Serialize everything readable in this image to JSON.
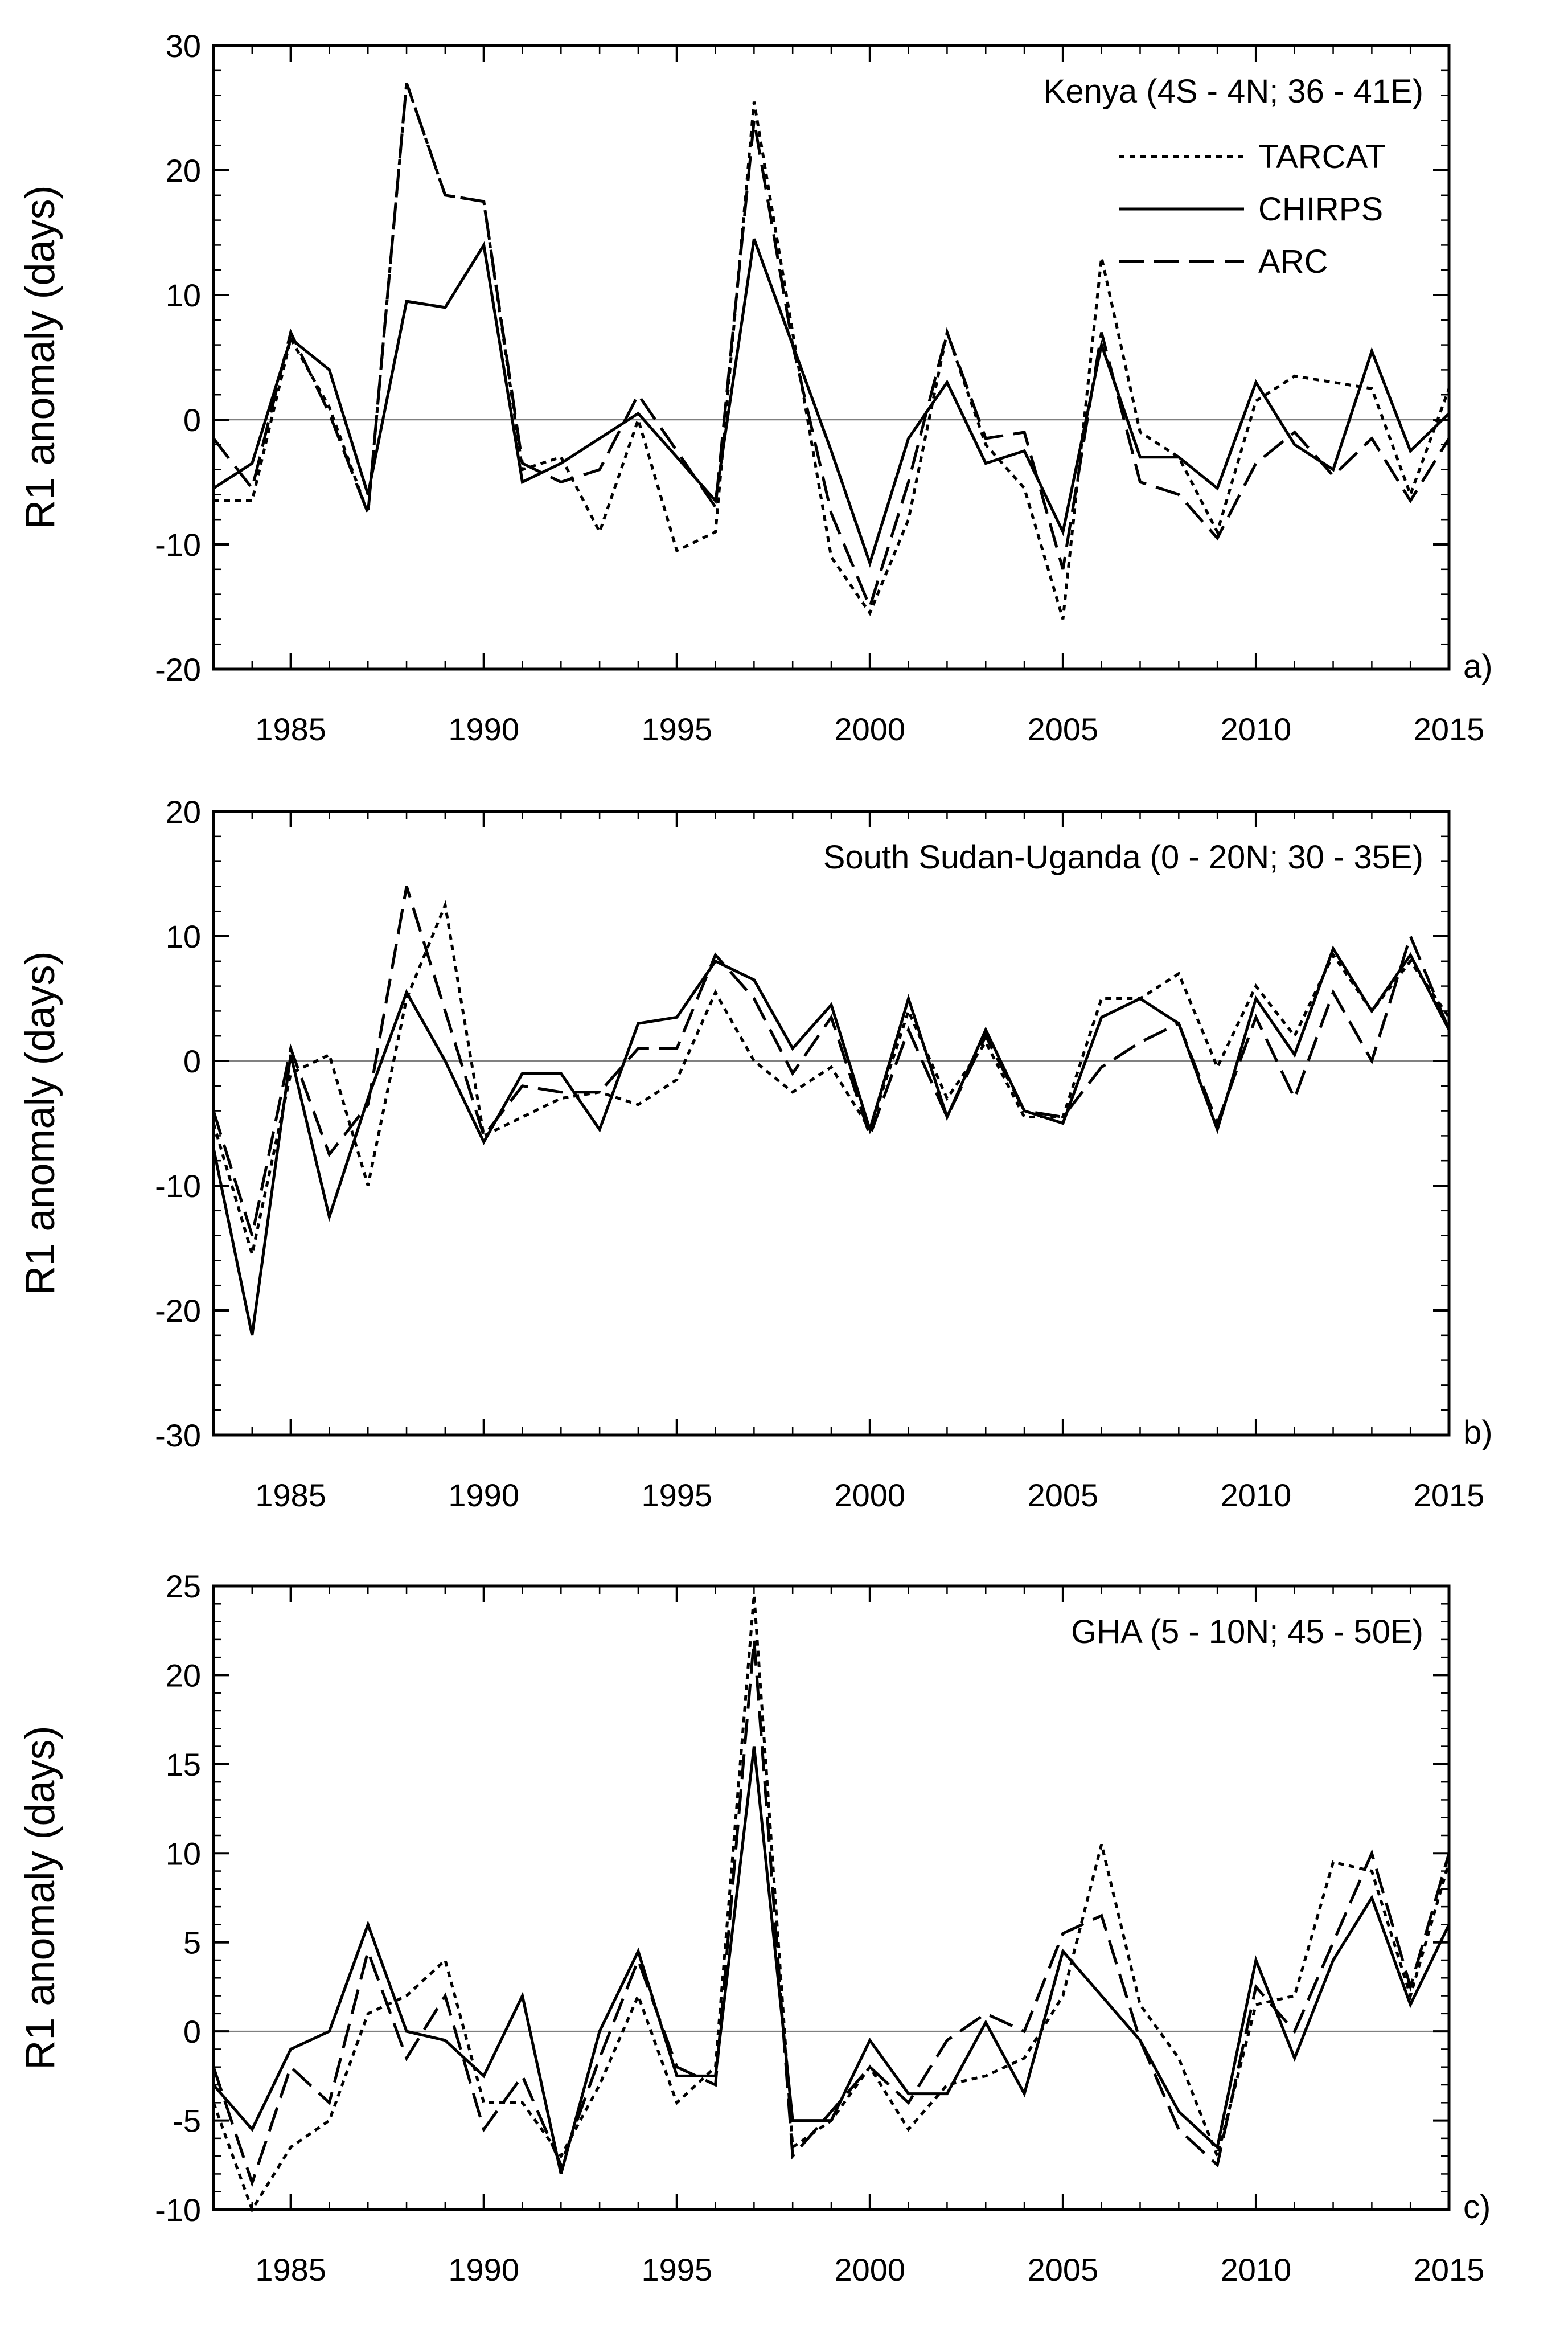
{
  "chart_data": [
    {
      "type": "line",
      "panel_label": "a)",
      "annotation": "Kenya (4S - 4N; 36 - 41E)",
      "ylabel": "R1 anomaly (days)",
      "xlabel": "",
      "xlim": [
        1983,
        2015
      ],
      "ylim": [
        -20,
        30
      ],
      "xticks": [
        1985,
        1990,
        1995,
        2000,
        2005,
        2010,
        2015
      ],
      "yticks": [
        -20,
        -10,
        0,
        10,
        20,
        30
      ],
      "x": [
        1983,
        1984,
        1985,
        1986,
        1987,
        1988,
        1989,
        1990,
        1991,
        1992,
        1993,
        1994,
        1995,
        1996,
        1997,
        1998,
        1999,
        2000,
        2001,
        2002,
        2003,
        2004,
        2005,
        2006,
        2007,
        2008,
        2009,
        2010,
        2011,
        2012,
        2013,
        2014,
        2015
      ],
      "legend": {
        "placement": "top-right",
        "entries": [
          "TARCAT",
          "CHIRPS",
          "ARC"
        ]
      },
      "series": [
        {
          "name": "TARCAT",
          "style": "dotted",
          "values": [
            -6.5,
            -6.5,
            6.5,
            1.0,
            -7.5,
            27.0,
            18.0,
            17.5,
            -4.0,
            -3.0,
            -9.0,
            0.0,
            -10.5,
            -9.0,
            25.5,
            7.0,
            -11.0,
            -15.5,
            -8.0,
            7.0,
            -2.0,
            -5.5,
            -16.0,
            13.0,
            -1.0,
            -3.0,
            -9.0,
            1.5,
            3.5,
            3.0,
            2.5,
            -6.0,
            2.5
          ]
        },
        {
          "name": "CHIRPS",
          "style": "solid",
          "values": [
            -5.5,
            -3.5,
            6.5,
            4.0,
            -6.0,
            9.5,
            9.0,
            14.0,
            -5.0,
            -3.5,
            -1.5,
            0.5,
            -3.0,
            -6.5,
            14.5,
            6.0,
            -2.5,
            -11.5,
            -1.5,
            3.0,
            -3.5,
            -2.5,
            -9.0,
            6.0,
            -3.0,
            -3.0,
            -5.5,
            3.0,
            -2.0,
            -4.0,
            5.5,
            -2.5,
            0.5
          ]
        },
        {
          "name": "ARC",
          "style": "dashed",
          "values": [
            -1.5,
            -5.5,
            7.0,
            0.5,
            -7.5,
            27.0,
            18.0,
            17.5,
            -3.5,
            -5.0,
            -4.0,
            2.0,
            -2.5,
            -7.0,
            24.0,
            6.0,
            -7.5,
            -15.0,
            -5.0,
            7.0,
            -1.5,
            -1.0,
            -12.0,
            7.0,
            -5.0,
            -6.0,
            -9.5,
            -3.5,
            -1.0,
            -4.5,
            -1.5,
            -6.5,
            -1.5
          ]
        }
      ]
    },
    {
      "type": "line",
      "panel_label": "b)",
      "annotation": "South Sudan-Uganda (0 - 20N; 30 - 35E)",
      "ylabel": "R1 anomaly (days)",
      "xlabel": "",
      "xlim": [
        1983,
        2015
      ],
      "ylim": [
        -30,
        20
      ],
      "xticks": [
        1985,
        1990,
        1995,
        2000,
        2005,
        2010,
        2015
      ],
      "yticks": [
        -30,
        -20,
        -10,
        0,
        10,
        20
      ],
      "x": [
        1983,
        1984,
        1985,
        1986,
        1987,
        1988,
        1989,
        1990,
        1991,
        1992,
        1993,
        1994,
        1995,
        1996,
        1997,
        1998,
        1999,
        2000,
        2001,
        2002,
        2003,
        2004,
        2005,
        2006,
        2007,
        2008,
        2009,
        2010,
        2011,
        2012,
        2013,
        2014,
        2015
      ],
      "series": [
        {
          "name": "TARCAT",
          "style": "dotted",
          "values": [
            -5.0,
            -15.5,
            -1.0,
            0.5,
            -10.0,
            5.0,
            12.5,
            -6.0,
            -4.5,
            -3.0,
            -2.5,
            -3.5,
            -1.5,
            5.5,
            0.0,
            -2.5,
            -0.5,
            -5.5,
            4.0,
            -3.0,
            1.5,
            -4.5,
            -4.5,
            5.0,
            5.0,
            7.0,
            -0.5,
            6.0,
            2.0,
            8.5,
            4.0,
            8.0,
            3.5
          ]
        },
        {
          "name": "CHIRPS",
          "style": "solid",
          "values": [
            -7.0,
            -22.0,
            0.5,
            -12.5,
            -3.0,
            5.5,
            0.0,
            -6.5,
            -1.0,
            -1.0,
            -5.5,
            3.0,
            3.5,
            8.0,
            6.5,
            1.0,
            4.5,
            -5.5,
            5.0,
            -4.5,
            2.5,
            -4.0,
            -5.0,
            3.5,
            5.0,
            3.0,
            -5.5,
            5.0,
            0.5,
            9.0,
            4.0,
            8.5,
            2.5
          ]
        },
        {
          "name": "ARC",
          "style": "dashed",
          "values": [
            -4.0,
            -14.0,
            1.0,
            -7.5,
            -3.5,
            14.0,
            4.0,
            -6.0,
            -2.0,
            -2.5,
            -2.5,
            1.0,
            1.0,
            8.5,
            5.0,
            -1.0,
            3.5,
            -6.0,
            2.5,
            -4.5,
            2.0,
            -4.0,
            -4.5,
            -0.5,
            1.5,
            3.0,
            -5.0,
            3.5,
            -3.0,
            5.5,
            0.0,
            10.0,
            2.5
          ]
        }
      ]
    },
    {
      "type": "line",
      "panel_label": "c)",
      "annotation": "GHA (5 - 10N; 45 - 50E)",
      "ylabel": "R1 anomaly (days)",
      "xlabel": "",
      "xlim": [
        1983,
        2015
      ],
      "ylim": [
        -10,
        25
      ],
      "xticks": [
        1985,
        1990,
        1995,
        2000,
        2005,
        2010,
        2015
      ],
      "yticks": [
        -10,
        -5,
        0,
        5,
        10,
        15,
        20,
        25
      ],
      "x": [
        1983,
        1984,
        1985,
        1986,
        1987,
        1988,
        1989,
        1990,
        1991,
        1992,
        1993,
        1994,
        1995,
        1996,
        1997,
        1998,
        1999,
        2000,
        2001,
        2002,
        2003,
        2004,
        2005,
        2006,
        2007,
        2008,
        2009,
        2010,
        2011,
        2012,
        2013,
        2014,
        2015
      ],
      "series": [
        {
          "name": "TARCAT",
          "style": "dotted",
          "values": [
            -4.0,
            -10.0,
            -6.5,
            -5.0,
            1.0,
            2.0,
            4.0,
            -4.0,
            -4.0,
            -7.0,
            -3.0,
            2.0,
            -4.0,
            -2.0,
            24.5,
            -6.5,
            -5.0,
            -2.0,
            -5.5,
            -3.0,
            -2.5,
            -1.5,
            2.0,
            10.5,
            1.5,
            -1.5,
            -7.0,
            1.5,
            2.0,
            9.5,
            9.0,
            2.0,
            9.5
          ]
        },
        {
          "name": "CHIRPS",
          "style": "solid",
          "values": [
            -3.0,
            -5.5,
            -1.0,
            0.0,
            6.0,
            0.0,
            -0.5,
            -2.5,
            2.0,
            -8.0,
            0.0,
            4.5,
            -2.5,
            -2.5,
            16.0,
            -5.0,
            -5.0,
            -0.5,
            -3.5,
            -3.5,
            0.5,
            -3.5,
            4.5,
            2.0,
            -0.5,
            -4.5,
            -6.5,
            4.0,
            -1.5,
            4.0,
            7.5,
            1.5,
            6.0
          ]
        },
        {
          "name": "ARC",
          "style": "dashed",
          "values": [
            -2.0,
            -8.5,
            -2.0,
            -4.0,
            4.5,
            -1.5,
            2.0,
            -5.5,
            -2.5,
            -7.5,
            -1.5,
            4.0,
            -2.0,
            -3.0,
            22.0,
            -7.0,
            -4.5,
            -2.0,
            -4.0,
            -0.5,
            1.0,
            0.0,
            5.5,
            6.5,
            -0.5,
            -5.5,
            -7.5,
            2.5,
            0.0,
            5.0,
            10.0,
            2.5,
            10.0
          ]
        }
      ]
    }
  ]
}
